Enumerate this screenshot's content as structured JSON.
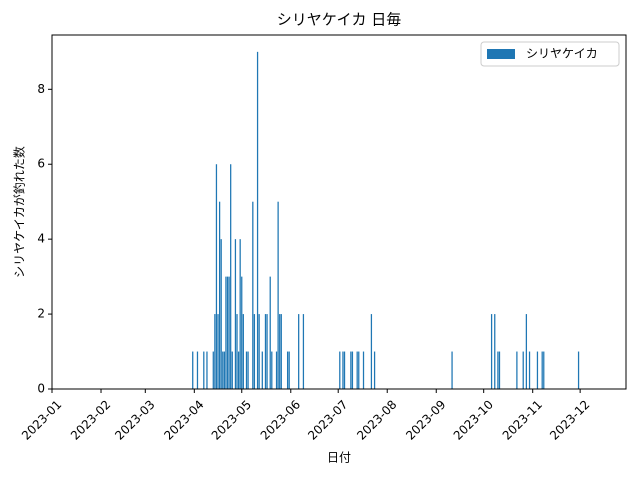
{
  "chart_data": {
    "type": "bar",
    "title": "シリヤケイカ 日毎",
    "xlabel": "日付",
    "ylabel": "シリヤケイカが釣れた数",
    "x": [
      89,
      92,
      96,
      98,
      102,
      103,
      104,
      105,
      106,
      107,
      108,
      109,
      110,
      111,
      112,
      113,
      114,
      116,
      117,
      118,
      119,
      120,
      121,
      123,
      124,
      127,
      128,
      130,
      131,
      133,
      135,
      136,
      138,
      139,
      142,
      143,
      144,
      145,
      149,
      150,
      156,
      159,
      182,
      184,
      185,
      189,
      190,
      193,
      194,
      197,
      202,
      204,
      253,
      278,
      280,
      282,
      283,
      294,
      298,
      300,
      302,
      307,
      310,
      311,
      333
    ],
    "series": [
      {
        "name": "シリヤケイカ",
        "color": "#1f77b4",
        "values": [
          1,
          1,
          1,
          1,
          1,
          2,
          6,
          2,
          5,
          4,
          1,
          1,
          3,
          3,
          3,
          6,
          1,
          4,
          2,
          1,
          4,
          3,
          2,
          1,
          1,
          5,
          2,
          9,
          2,
          1,
          2,
          2,
          3,
          1,
          1,
          5,
          2,
          2,
          1,
          1,
          2,
          2,
          1,
          1,
          1,
          1,
          1,
          1,
          1,
          1,
          2,
          1,
          1,
          2,
          2,
          1,
          1,
          1,
          1,
          2,
          1,
          1,
          1,
          1,
          1
        ]
      }
    ],
    "xlim": [
      0,
      363
    ],
    "ylim": [
      0,
      9.45
    ],
    "xticks": [
      {
        "value": 0,
        "label": "2023-01"
      },
      {
        "value": 31,
        "label": "2023-02"
      },
      {
        "value": 59,
        "label": "2023-03"
      },
      {
        "value": 90,
        "label": "2023-04"
      },
      {
        "value": 120,
        "label": "2023-05"
      },
      {
        "value": 151,
        "label": "2023-06"
      },
      {
        "value": 181,
        "label": "2023-07"
      },
      {
        "value": 212,
        "label": "2023-08"
      },
      {
        "value": 243,
        "label": "2023-09"
      },
      {
        "value": 273,
        "label": "2023-10"
      },
      {
        "value": 304,
        "label": "2023-11"
      },
      {
        "value": 334,
        "label": "2023-12"
      }
    ],
    "yticks": [
      0,
      2,
      4,
      6,
      8
    ],
    "legend": "upper right"
  }
}
